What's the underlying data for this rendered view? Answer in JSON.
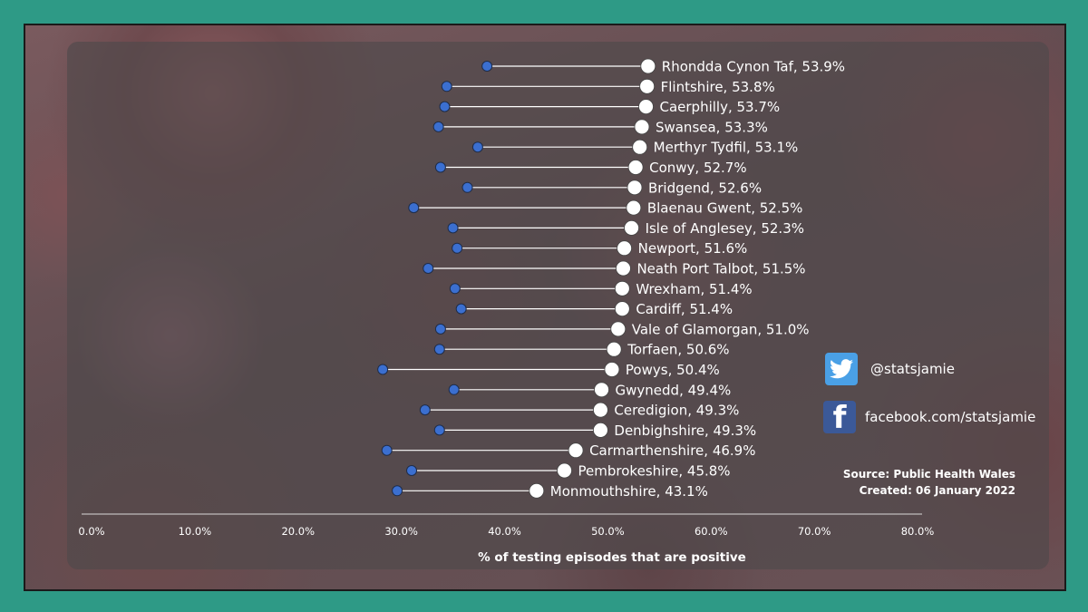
{
  "chart_data": {
    "type": "dumbbell",
    "xlabel": "% of testing episodes that are positive",
    "xlim": [
      0,
      80
    ],
    "xticks": [
      "0.0%",
      "10.0%",
      "20.0%",
      "30.0%",
      "40.0%",
      "50.0%",
      "60.0%",
      "70.0%",
      "80.0%"
    ],
    "xtick_values": [
      0,
      10,
      20,
      30,
      40,
      50,
      60,
      70,
      80
    ],
    "series": [
      {
        "name": "",
        "color": "#3b6fd0"
      },
      {
        "name": "",
        "color": "#ffffff"
      }
    ],
    "categories": [
      "Rhondda Cynon Taf, 53.9%",
      "Flintshire, 53.8%",
      "Caerphilly, 53.7%",
      "Swansea, 53.3%",
      "Merthyr Tydfil, 53.1%",
      "Conwy, 52.7%",
      "Bridgend, 52.6%",
      "Blaenau Gwent, 52.5%",
      "Isle of Anglesey, 52.3%",
      "Newport, 51.6%",
      "Neath Port Talbot, 51.5%",
      "Wrexham, 51.4%",
      "Cardiff, 51.4%",
      "Vale of Glamorgan, 51.0%",
      "Torfaen, 50.6%",
      "Powys, 50.4%",
      "Gwynedd, 49.4%",
      "Ceredigion, 49.3%",
      "Denbighshire, 49.3%",
      "Carmarthenshire, 46.9%",
      "Pembrokeshire, 45.8%",
      "Monmouthshire, 43.1%"
    ],
    "start_values": [
      38.3,
      34.4,
      34.2,
      33.6,
      37.4,
      33.8,
      36.4,
      31.2,
      35.0,
      35.4,
      32.6,
      35.2,
      35.8,
      33.8,
      33.7,
      28.2,
      35.1,
      32.3,
      33.7,
      28.6,
      31.0,
      29.6
    ],
    "end_values": [
      53.9,
      53.8,
      53.7,
      53.3,
      53.1,
      52.7,
      52.6,
      52.5,
      52.3,
      51.6,
      51.5,
      51.4,
      51.4,
      51.0,
      50.6,
      50.4,
      49.4,
      49.3,
      49.3,
      46.9,
      45.8,
      43.1
    ]
  },
  "social": {
    "twitter_icon": "twitter-bird-icon",
    "twitter_handle": "@statsjamie",
    "facebook_icon": "facebook-f-icon",
    "facebook_handle": "facebook.com/statsjamie"
  },
  "footer": {
    "source": "Source: Public Health Wales",
    "created": "Created: 06 January 2022"
  }
}
